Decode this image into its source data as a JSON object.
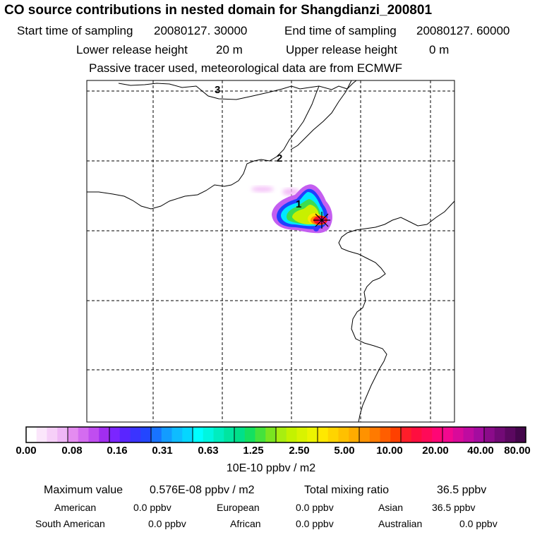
{
  "title": "CO  source contributions in nested domain for Shangdianzi_200801",
  "header": {
    "start_label": "Start time of sampling",
    "start_value": "20080127. 30000",
    "end_label": "End time of sampling",
    "end_value": "20080127. 60000",
    "lower_label": "Lower release height",
    "lower_value": "20 m",
    "upper_label": "Upper release height",
    "upper_value": "0 m",
    "note": "Passive tracer used, meteorological data are from ECMWF"
  },
  "map": {
    "contour_labels": [
      "3",
      "2",
      "1"
    ],
    "colors": {
      "white": "#ffffff",
      "light_magenta": "#f2b6f6",
      "magenta": "#c45ef0",
      "purple": "#8a2be2",
      "blue": "#1f3fff",
      "cyan": "#00e8ff",
      "green": "#3cdc50",
      "yellow_green": "#c8f000",
      "yellow": "#ffe600",
      "orange": "#ff8c00",
      "red": "#ff1020",
      "deep_pink": "#ff0090"
    }
  },
  "colorbar": {
    "ticks": [
      "0.00",
      "0.08",
      "0.16",
      "0.31",
      "0.63",
      "1.25",
      "2.50",
      "5.00",
      "10.00",
      "20.00",
      "40.00",
      "80.00"
    ],
    "unit": "10E-10 ppbv / m2",
    "segments": [
      [
        "#ffffff",
        "#fbe6fb",
        "#f6cff8",
        "#efb7f6"
      ],
      [
        "#e48cf0",
        "#d46cf0",
        "#c04df0",
        "#a12ef0"
      ],
      [
        "#7b25ff",
        "#5a25ff",
        "#3a34ff",
        "#2346ff"
      ],
      [
        "#1873ff",
        "#139cff",
        "#0fbcff",
        "#05d6ff"
      ],
      [
        "#00ffff",
        "#00f6e0",
        "#00edbf",
        "#00e5a0"
      ],
      [
        "#00e08a",
        "#14e060",
        "#45e23c",
        "#7ae520"
      ],
      [
        "#a8ee10",
        "#c4f200",
        "#d9f300",
        "#edf400"
      ],
      [
        "#ffe800",
        "#ffd400",
        "#ffc000",
        "#ffac00"
      ],
      [
        "#ff9200",
        "#ff7a00",
        "#ff5e00",
        "#ff4000"
      ],
      [
        "#ff1e2a",
        "#ff0e3f",
        "#ff0a58",
        "#ff0675"
      ],
      [
        "#f3088f",
        "#d90a9a",
        "#bf0ba0",
        "#a40c9f"
      ],
      [
        "#8b0b8a",
        "#720a76",
        "#5b0860",
        "#44064b"
      ]
    ]
  },
  "footer": {
    "max_label": "Maximum value",
    "max_value": "0.576E-08 ppbv / m2",
    "total_label": "Total mixing ratio",
    "total_value": "36.5 ppbv",
    "regions": [
      {
        "name": "American",
        "value": "0.0 ppbv"
      },
      {
        "name": "European",
        "value": "0.0 ppbv"
      },
      {
        "name": "Asian",
        "value": "36.5 ppbv"
      },
      {
        "name": "South American",
        "value": "0.0 ppbv"
      },
      {
        "name": "African",
        "value": "0.0 ppbv"
      },
      {
        "name": "Australian",
        "value": "0.0 ppbv"
      }
    ]
  }
}
